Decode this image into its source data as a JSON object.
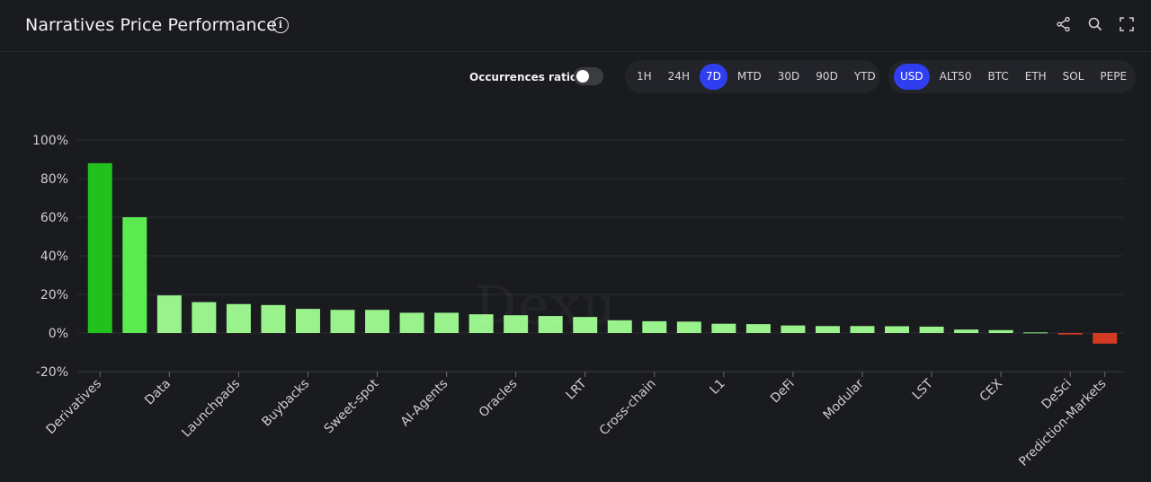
{
  "header": {
    "title": "Narratives Price Performance",
    "info_glyph": "i"
  },
  "controls": {
    "occurrences_label": "Occurrences ratio",
    "occurrences_on": false,
    "timeframes": [
      "1H",
      "24H",
      "7D",
      "MTD",
      "30D",
      "90D",
      "YTD"
    ],
    "timeframe_selected": "7D",
    "currencies": [
      "USD",
      "ALT50",
      "BTC",
      "ETH",
      "SOL",
      "PEPE"
    ],
    "currency_selected": "USD"
  },
  "colors": {
    "accent": "#2f3ff0",
    "bar_top": "#22c11e",
    "bar_second": "#5bea4f",
    "bar_positive": "#9af28d",
    "bar_negative": "#d23a22"
  },
  "chart_data": {
    "type": "bar",
    "title": "",
    "xlabel": "",
    "ylabel": "",
    "ylim": [
      -20,
      100
    ],
    "y_ticks": [
      "100%",
      "80%",
      "60%",
      "40%",
      "20%",
      "0%",
      "-20%"
    ],
    "grid": true,
    "categories": [
      "Derivatives",
      "",
      "Data",
      "",
      "Launchpads",
      "",
      "Buybacks",
      "",
      "Sweet-spot",
      "",
      "AI-Agents",
      "",
      "Oracles",
      "",
      "LRT",
      "",
      "Cross-chain",
      "",
      "L1",
      "",
      "DeFi",
      "",
      "Modular",
      "",
      "LST",
      "",
      "CEX",
      "",
      "DeSci",
      "Prediction-Markets"
    ],
    "values": [
      88,
      60,
      19.5,
      16,
      15,
      14.5,
      12.5,
      12,
      12,
      10.5,
      10.5,
      9.7,
      9.2,
      8.8,
      8.3,
      6.6,
      6.1,
      5.9,
      4.8,
      4.6,
      3.9,
      3.6,
      3.6,
      3.5,
      3.3,
      1.8,
      1.5,
      0.3,
      -0.8,
      -5.5
    ]
  }
}
